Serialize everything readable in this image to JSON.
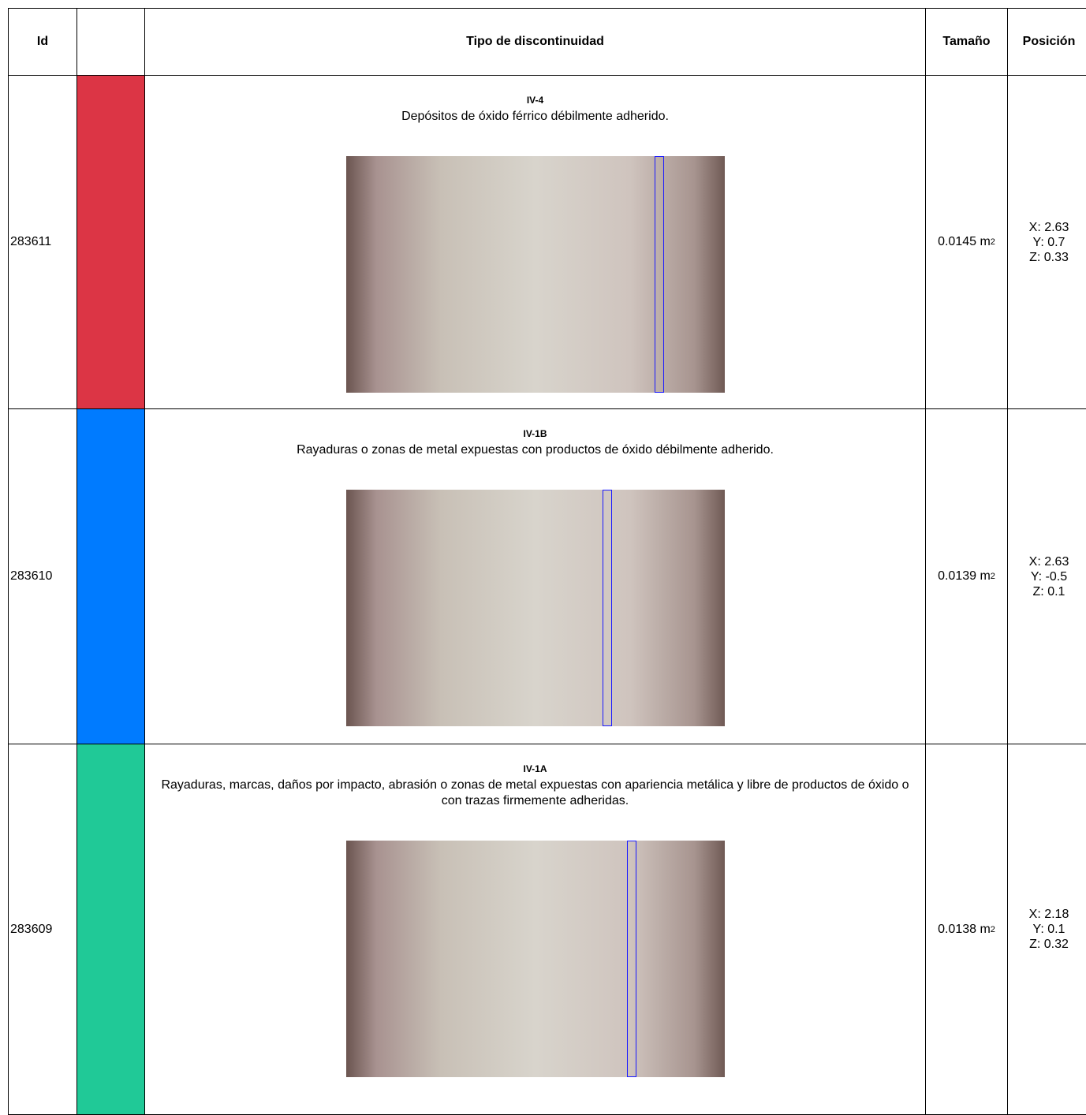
{
  "table": {
    "header": [
      "Id",
      "Tipo de discontinuidad",
      "Tamaño",
      "Posición"
    ],
    "rows": [
      {
        "id": "283611",
        "color": "#dc3545",
        "code": "IV-4",
        "description": "Depósitos de óxido férrico débilmente adherido.",
        "size": "0.0145 m",
        "size_sup": "2",
        "position": [
          "X: 2.63",
          "Y: 0.7",
          "Z: 0.33"
        ]
      },
      {
        "id": "283610",
        "color": "#007bff",
        "code": "IV-1B",
        "description": "Rayaduras o zonas de metal expuestas con productos de óxido débilmente adherido.",
        "size": "0.0139 m",
        "size_sup": "2",
        "position": [
          "X: 2.63",
          "Y: -0.5",
          "Z: 0.1"
        ]
      },
      {
        "id": "283609",
        "color": "#20c997",
        "code": "IV-1A",
        "description": "Rayaduras, marcas, daños por impacto, abrasión o zonas de metal expuestas con apariencia metálica y libre de productos de óxido o con trazas firmemente adheridas.",
        "size": "0.0138 m",
        "size_sup": "2",
        "position": [
          "X: 2.18",
          "Y: 0.1",
          "Z: 0.32"
        ]
      }
    ]
  }
}
